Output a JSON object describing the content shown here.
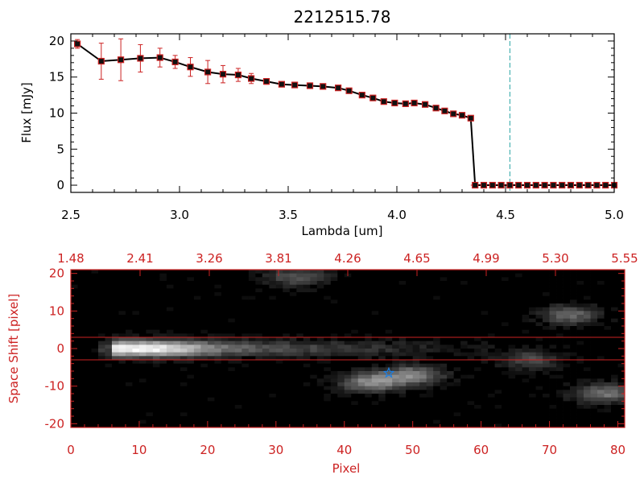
{
  "colors": {
    "axes_top": "#000000",
    "axes_bottom": "#cc2222",
    "marker": "#cc2222",
    "errorbar": "#cc2222",
    "line": "#000000",
    "vline": "#2aa6a6",
    "star": "#1e7fe0"
  },
  "chart_data": [
    {
      "type": "line",
      "title": "2212515.78",
      "xlabel": "Lambda [um]",
      "ylabel": "Flux [mJy]",
      "xlim": [
        2.5,
        5.0
      ],
      "ylim": [
        -1,
        21
      ],
      "xticks": [
        "2.5",
        "3.0",
        "3.5",
        "4.0",
        "4.5",
        "5.0"
      ],
      "yticks": [
        "0",
        "5",
        "10",
        "15",
        "20"
      ],
      "vertical_line_x": 4.52,
      "series": [
        {
          "x": [
            2.53,
            2.64,
            2.73,
            2.82,
            2.91,
            2.98,
            3.05,
            3.13,
            3.2,
            3.27,
            3.33,
            3.4,
            3.47,
            3.53,
            3.6,
            3.66,
            3.73,
            3.78,
            3.84,
            3.89,
            3.94,
            3.99,
            4.04,
            4.08,
            4.13,
            4.18,
            4.22,
            4.26,
            4.3,
            4.34
          ],
          "y": [
            19.6,
            17.2,
            17.4,
            17.6,
            17.7,
            17.1,
            16.4,
            15.7,
            15.4,
            15.3,
            14.8,
            14.4,
            14.0,
            13.9,
            13.8,
            13.7,
            13.5,
            13.1,
            12.5,
            12.1,
            11.6,
            11.4,
            11.3,
            11.4,
            11.2,
            10.7,
            10.3,
            9.9,
            9.7,
            9.3
          ],
          "err": [
            0.6,
            2.5,
            2.9,
            1.9,
            1.3,
            0.9,
            1.3,
            1.6,
            1.2,
            0.9,
            0.7,
            0.4,
            0.2,
            0.2,
            0.2,
            0.2,
            0.2,
            0.2,
            0.2,
            0.2,
            0.2,
            0.2,
            0.2,
            0.2,
            0.2,
            0.2,
            0.2,
            0.2,
            0.2,
            0.2
          ]
        },
        {
          "x": [
            4.36,
            4.4,
            4.44,
            4.48,
            4.52,
            4.56,
            4.6,
            4.64,
            4.68,
            4.72,
            4.76,
            4.8,
            4.84,
            4.88,
            4.92,
            4.96,
            5.0
          ],
          "y": [
            0,
            0,
            0,
            0,
            0,
            0,
            0,
            0,
            0,
            0,
            0,
            0,
            0,
            0,
            0,
            0,
            0
          ]
        }
      ]
    },
    {
      "type": "heatmap",
      "xlabel": "Pixel",
      "ylabel": "Space Shift [pixel]",
      "xlim": [
        0,
        81
      ],
      "ylim": [
        -21,
        21
      ],
      "xticks": [
        "0",
        "10",
        "20",
        "30",
        "40",
        "50",
        "60",
        "70",
        "80"
      ],
      "yticks": [
        "-20",
        "-10",
        "0",
        "10",
        "20"
      ],
      "top_axis_ticks": [
        "1.48",
        "2.41",
        "3.26",
        "3.81",
        "4.26",
        "4.65",
        "4.99",
        "5.30",
        "5.55"
      ],
      "aperture_lines_y": [
        3,
        -3
      ],
      "star_position": [
        46.5,
        -6.5
      ],
      "features": [
        {
          "shape": "trace",
          "x_range": [
            6,
            62
          ],
          "y_center": 0,
          "peak_x": 11,
          "intensity": 1.0
        },
        {
          "shape": "blob",
          "x": 44,
          "y": -9,
          "intensity": 0.55
        },
        {
          "shape": "blob",
          "x": 50,
          "y": -7,
          "intensity": 0.5
        },
        {
          "shape": "blob",
          "x": 78,
          "y": -12,
          "intensity": 0.45
        },
        {
          "shape": "blob",
          "x": 73,
          "y": 9,
          "intensity": 0.4
        },
        {
          "shape": "blob",
          "x": 33,
          "y": 19,
          "intensity": 0.35
        },
        {
          "shape": "blob",
          "x": 67,
          "y": -3,
          "intensity": 0.3
        }
      ]
    }
  ]
}
